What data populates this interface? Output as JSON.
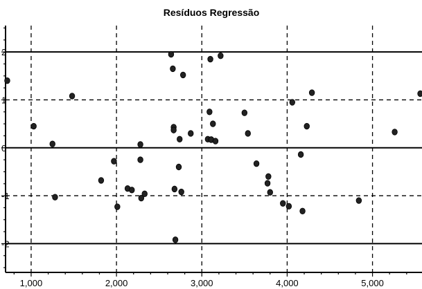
{
  "chart_data": {
    "type": "scatter",
    "title": "Resíduos Regressão",
    "xlabel": "",
    "ylabel": "",
    "xlim": [
      700,
      5580
    ],
    "ylim": [
      -2.6,
      2.55
    ],
    "x_ticks": [
      1000,
      2000,
      3000,
      4000,
      5000
    ],
    "x_tick_labels": [
      "1,000",
      "2,000",
      "3,000",
      "4,000",
      "5,000"
    ],
    "y_ticks": [
      -2,
      -1,
      0,
      1,
      2
    ],
    "y_tick_labels": [
      "-2",
      "-1",
      "0",
      "1",
      "2"
    ],
    "solid_hlines": [
      -2,
      0,
      2
    ],
    "dashed_hlines": [
      -1,
      1
    ],
    "dashed_vlines": [
      1000,
      2000,
      3000,
      4000,
      5000
    ],
    "grid": true,
    "series": [
      {
        "x": [
          720,
          1030,
          1250,
          1280,
          1480,
          1820,
          1970,
          2010,
          2130,
          2180,
          2280,
          2280,
          2290,
          2330,
          2640,
          2660,
          2670,
          2670,
          2680,
          2690,
          2730,
          2740,
          2760,
          2780,
          2870,
          3070,
          3090,
          3100,
          3110,
          3110,
          3130,
          3160,
          3220,
          3500,
          3540,
          3640,
          3770,
          3780,
          3800,
          3950,
          4020,
          4060,
          4160,
          4180,
          4230,
          4290,
          4840,
          5260,
          5560
        ],
        "y": [
          1.4,
          0.45,
          0.08,
          -1.03,
          1.08,
          -0.68,
          -0.28,
          -1.23,
          -0.85,
          -0.88,
          0.07,
          -0.25,
          -1.05,
          -0.96,
          1.95,
          1.65,
          0.43,
          0.37,
          -0.86,
          -1.92,
          -0.4,
          0.18,
          -0.92,
          1.52,
          0.3,
          0.18,
          0.75,
          1.85,
          0.17,
          0.17,
          0.5,
          0.14,
          1.92,
          0.73,
          0.3,
          -0.33,
          -0.74,
          -0.6,
          -0.93,
          -1.16,
          -1.22,
          0.95,
          -0.14,
          -1.32,
          0.45,
          1.15,
          -1.1,
          0.33,
          1.13
        ],
        "color": "#222222"
      }
    ]
  }
}
